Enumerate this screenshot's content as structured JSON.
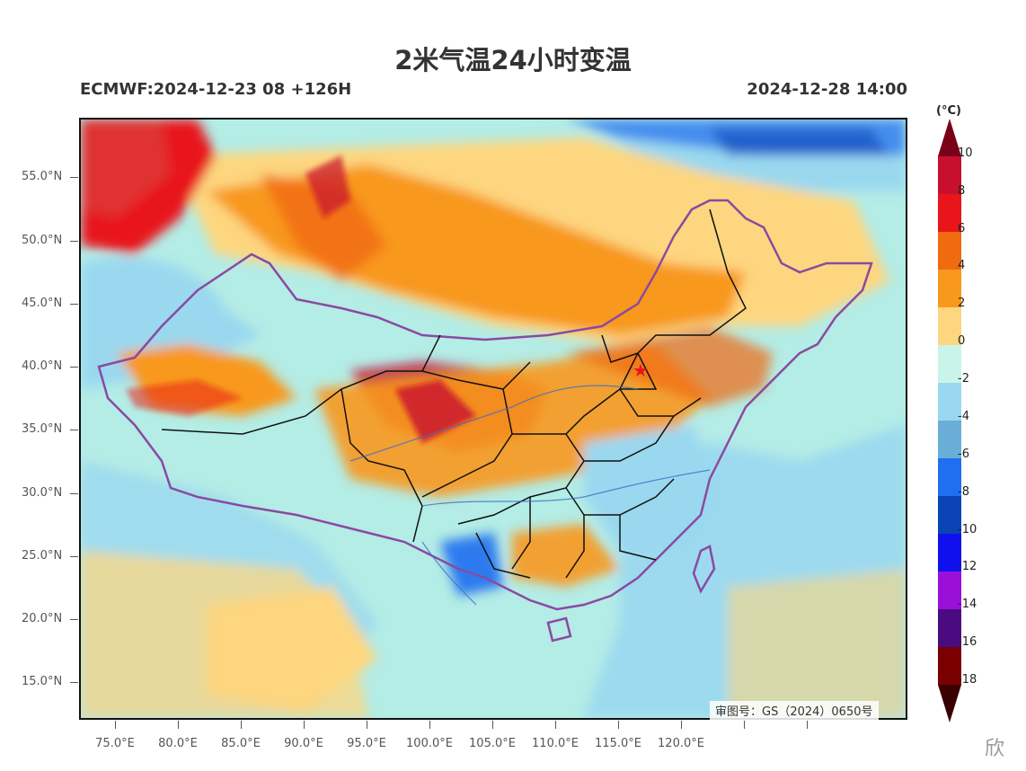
{
  "header": {
    "title": "2米气温24小时变温",
    "model_run": "ECMWF:2024-12-23 08 +126H",
    "valid_time": "2024-12-28 14:00"
  },
  "axes": {
    "lat_labels": [
      "55.0°N",
      "50.0°N",
      "45.0°N",
      "40.0°N",
      "35.0°N",
      "30.0°N",
      "25.0°N",
      "20.0°N",
      "15.0°N"
    ],
    "lon_labels": [
      "75.0°E",
      "80.0°E",
      "85.0°E",
      "90.0°E",
      "95.0°E",
      "100.0°E",
      "105.0°E",
      "110.0°E",
      "115.0°E",
      "120.0°E"
    ]
  },
  "colorbar": {
    "unit": "(°C)",
    "labels": [
      "10",
      "8",
      "6",
      "4",
      "2",
      "0",
      "-2",
      "-4",
      "-6",
      "-8",
      "-10",
      "-12",
      "-14",
      "-16",
      "-18"
    ],
    "colors": [
      "#7a0018",
      "#c8102e",
      "#e8151b",
      "#f06a10",
      "#f8981d",
      "#fdd67f",
      "#c8f5e8",
      "#9ad8ef",
      "#6aaed8",
      "#1f6ff0",
      "#0a44b5",
      "#1010ee",
      "#9a10d8",
      "#4a0a80",
      "#7a0000"
    ]
  },
  "review_number": "审图号：GS（2024）0650号",
  "watermark": "欣",
  "beijing_marker": "star-icon"
}
